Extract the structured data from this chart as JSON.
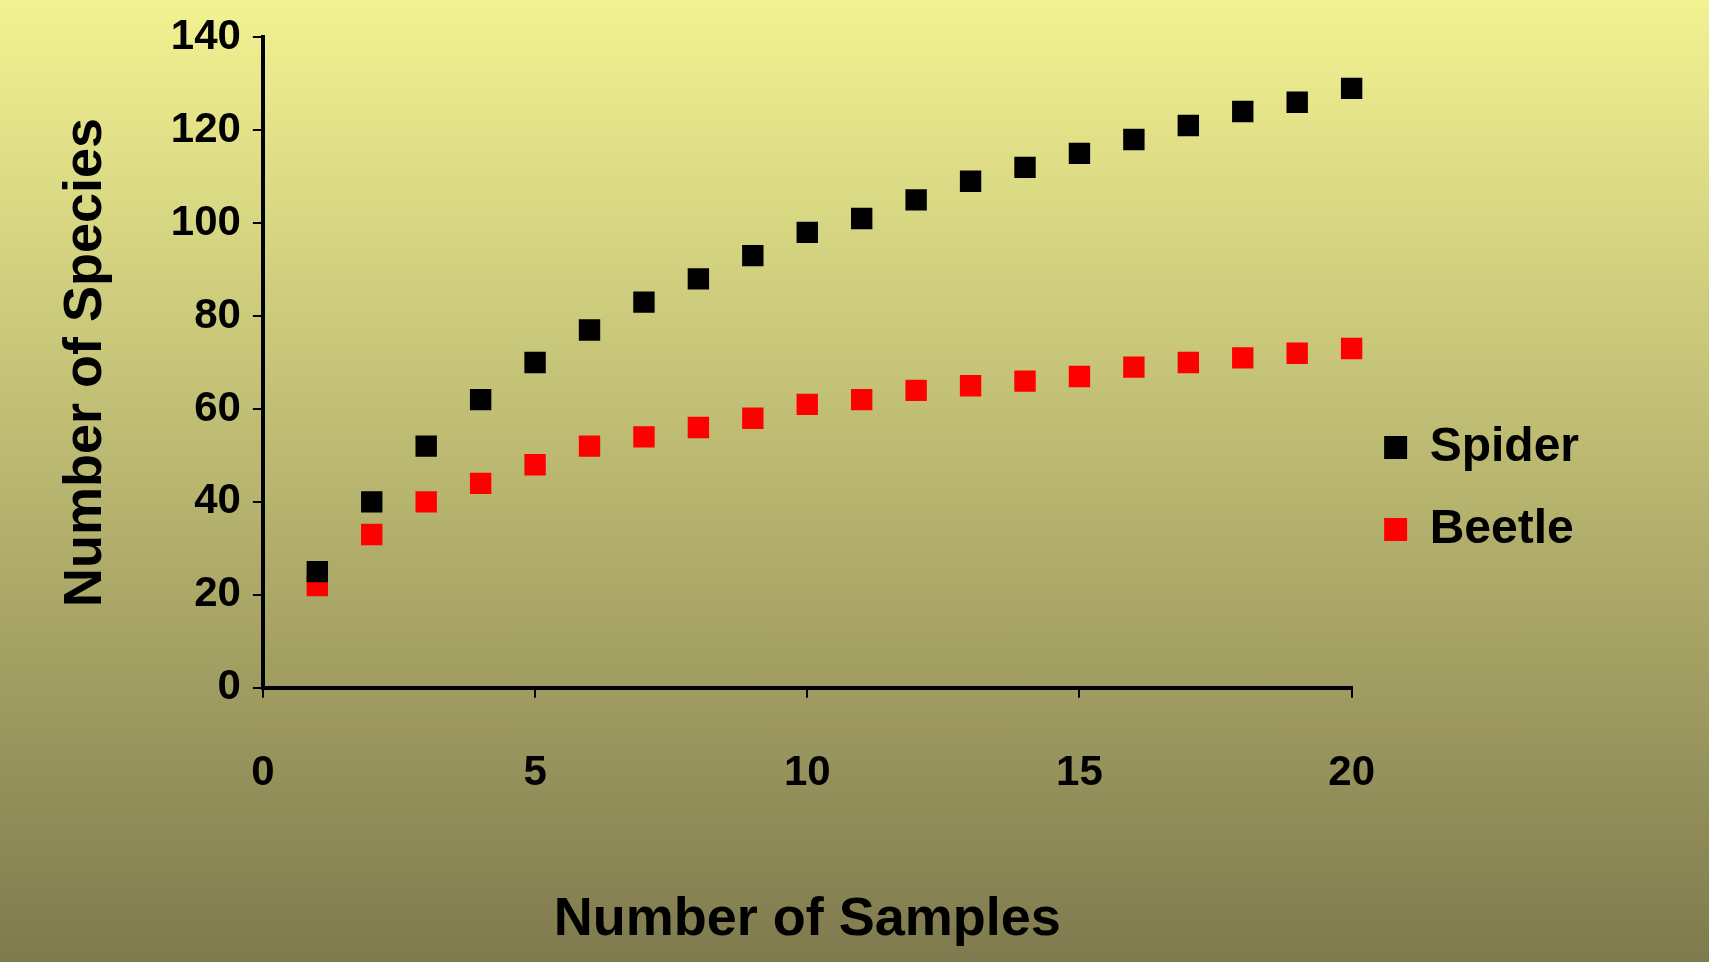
{
  "chart_data": {
    "type": "scatter",
    "xlabel": "Number of Samples",
    "ylabel": "Number of Species",
    "x": [
      1,
      2,
      3,
      4,
      5,
      6,
      7,
      8,
      9,
      10,
      11,
      12,
      13,
      14,
      15,
      16,
      17,
      18,
      19,
      20
    ],
    "series": [
      {
        "name": "Spider",
        "color": "#000000",
        "values": [
          25,
          40,
          52,
          62,
          70,
          77,
          83,
          88,
          93,
          98,
          101,
          105,
          109,
          112,
          115,
          118,
          121,
          124,
          126,
          129
        ]
      },
      {
        "name": "Beetle",
        "color": "#ff0000",
        "values": [
          22,
          33,
          40,
          44,
          48,
          52,
          54,
          56,
          58,
          61,
          62,
          64,
          65,
          66,
          67,
          69,
          70,
          71,
          72,
          73
        ]
      }
    ],
    "xlim": [
      0,
      20
    ],
    "xticks": [
      0,
      5,
      10,
      15,
      20
    ],
    "ylim": [
      0,
      140
    ],
    "yticks": [
      0,
      20,
      40,
      60,
      80,
      100,
      120,
      140
    ],
    "legend": "right",
    "marker": "square"
  }
}
